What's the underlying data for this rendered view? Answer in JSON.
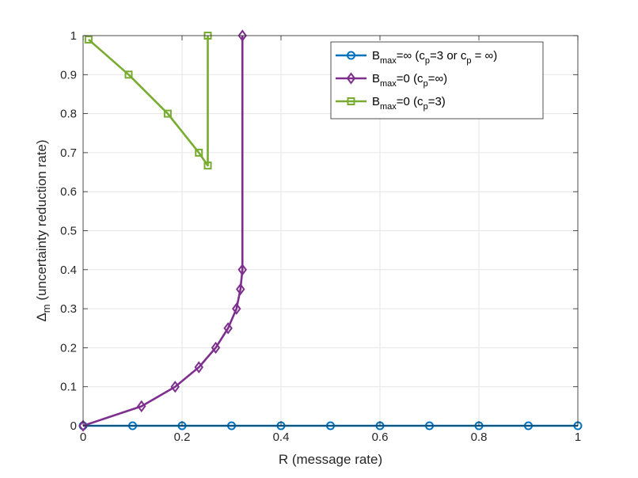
{
  "chart_data": {
    "type": "line",
    "xlabel": "R (message rate)",
    "ylabel_main": "Δ",
    "ylabel_sub": "m",
    "ylabel_rest": " (uncertainty reduction rate)",
    "xlim": [
      0,
      1
    ],
    "ylim": [
      0,
      1
    ],
    "xticks": [
      0,
      0.2,
      0.4,
      0.6,
      0.8,
      1
    ],
    "xtick_labels": [
      "0",
      "0.2",
      "0.4",
      "0.6",
      "0.8",
      "1"
    ],
    "yticks": [
      0,
      0.1,
      0.2,
      0.3,
      0.4,
      0.5,
      0.6,
      0.7,
      0.8,
      0.9,
      1
    ],
    "ytick_labels": [
      "0",
      "0.1",
      "0.2",
      "0.3",
      "0.4",
      "0.5",
      "0.6",
      "0.7",
      "0.8",
      "0.9",
      "1"
    ],
    "grid": true,
    "legend_position": "top-right",
    "series": [
      {
        "name": "B_max=∞ (c_p=3 or c_p = ∞)",
        "legend_parts": [
          {
            "t": "B",
            "s": false
          },
          {
            "t": "max",
            "s": true
          },
          {
            "t": "=∞ (c",
            "s": false
          },
          {
            "t": "p",
            "s": true
          },
          {
            "t": "=3 or c",
            "s": false
          },
          {
            "t": "p",
            "s": true
          },
          {
            "t": " = ∞)",
            "s": false
          }
        ],
        "color": "#0072BD",
        "marker": "circle",
        "x": [
          0,
          0.1,
          0.2,
          0.3,
          0.4,
          0.5,
          0.6,
          0.7,
          0.8,
          0.9,
          1
        ],
        "y": [
          0,
          0,
          0,
          0,
          0,
          0,
          0,
          0,
          0,
          0,
          0
        ]
      },
      {
        "name": "B_max=0 (c_p=∞)",
        "legend_parts": [
          {
            "t": "B",
            "s": false
          },
          {
            "t": "max",
            "s": true
          },
          {
            "t": "=0 (c",
            "s": false
          },
          {
            "t": "p",
            "s": true
          },
          {
            "t": "=∞)",
            "s": false
          }
        ],
        "color": "#7E2F8E",
        "marker": "diamond",
        "x": [
          0,
          0.118,
          0.186,
          0.234,
          0.268,
          0.293,
          0.31,
          0.318,
          0.322,
          0.322
        ],
        "y": [
          0,
          0.05,
          0.1,
          0.15,
          0.2,
          0.25,
          0.3,
          0.35,
          0.4,
          1.0
        ]
      },
      {
        "name": "B_max=0 (c_p=3)",
        "legend_parts": [
          {
            "t": "B",
            "s": false
          },
          {
            "t": "max",
            "s": true
          },
          {
            "t": "=0 (c",
            "s": false
          },
          {
            "t": "p",
            "s": true
          },
          {
            "t": "=3)",
            "s": false
          }
        ],
        "color": "#77AC30",
        "marker": "square",
        "x": [
          0.011,
          0.092,
          0.171,
          0.234,
          0.252,
          0.252
        ],
        "y": [
          0.99,
          0.9,
          0.8,
          0.7,
          0.667,
          1.0
        ]
      }
    ]
  }
}
